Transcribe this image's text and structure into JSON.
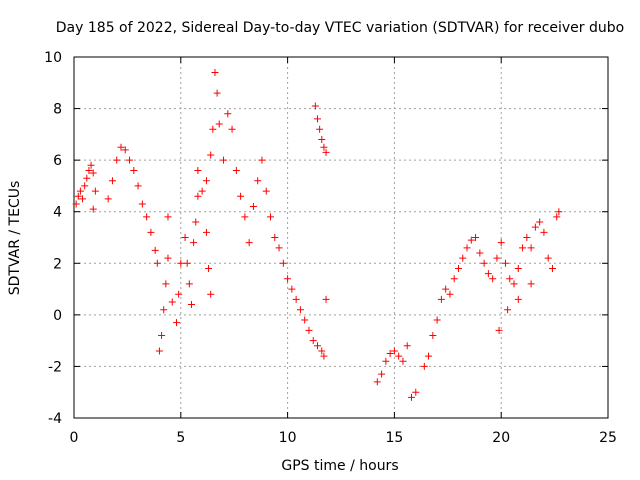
{
  "chart_data": {
    "type": "scatter",
    "title": "Day 185 of 2022, Sidereal Day-to-day VTEC variation (SDTVAR) for receiver dubo",
    "xlabel": "GPS time / hours",
    "ylabel": "SDTVAR / TECUs",
    "xlim": [
      0,
      25
    ],
    "ylim": [
      -4,
      10
    ],
    "xticks": [
      0,
      5,
      10,
      15,
      20,
      25
    ],
    "yticks": [
      -4,
      -2,
      0,
      2,
      4,
      6,
      8,
      10
    ],
    "xtick_labels": [
      "0",
      "5",
      "10",
      "15",
      "20",
      "25"
    ],
    "ytick_labels": [
      "-4",
      "-2",
      "0",
      "2",
      "4",
      "6",
      "8",
      "10"
    ],
    "grid": true,
    "marker": "plus",
    "color": "#ff0000",
    "series": [
      {
        "name": "SDTVAR",
        "points": [
          [
            0.1,
            4.3
          ],
          [
            0.2,
            4.6
          ],
          [
            0.3,
            4.8
          ],
          [
            0.4,
            4.5
          ],
          [
            0.5,
            5.0
          ],
          [
            0.6,
            5.3
          ],
          [
            0.7,
            5.6
          ],
          [
            0.8,
            5.8
          ],
          [
            0.9,
            5.5
          ],
          [
            1.0,
            4.8
          ],
          [
            0.9,
            4.1
          ],
          [
            1.6,
            4.5
          ],
          [
            1.8,
            5.2
          ],
          [
            2.0,
            6.0
          ],
          [
            2.2,
            6.5
          ],
          [
            2.4,
            6.4
          ],
          [
            2.6,
            6.0
          ],
          [
            2.8,
            5.6
          ],
          [
            3.0,
            5.0
          ],
          [
            3.2,
            4.3
          ],
          [
            3.4,
            3.8
          ],
          [
            3.6,
            3.2
          ],
          [
            3.8,
            2.5
          ],
          [
            3.9,
            2.0
          ],
          [
            4.0,
            -1.4
          ],
          [
            4.1,
            -0.8
          ],
          [
            4.2,
            0.2
          ],
          [
            4.3,
            1.2
          ],
          [
            4.4,
            2.2
          ],
          [
            4.4,
            3.8
          ],
          [
            4.6,
            0.5
          ],
          [
            4.8,
            -0.3
          ],
          [
            4.9,
            0.8
          ],
          [
            5.0,
            2.0
          ],
          [
            5.2,
            3.0
          ],
          [
            5.3,
            2.0
          ],
          [
            5.4,
            1.2
          ],
          [
            5.5,
            0.4
          ],
          [
            5.6,
            2.8
          ],
          [
            5.7,
            3.6
          ],
          [
            5.8,
            4.6
          ],
          [
            5.8,
            5.6
          ],
          [
            6.0,
            4.8
          ],
          [
            6.2,
            3.2
          ],
          [
            6.3,
            1.8
          ],
          [
            6.4,
            0.8
          ],
          [
            6.2,
            5.2
          ],
          [
            6.4,
            6.2
          ],
          [
            6.5,
            7.2
          ],
          [
            6.6,
            9.4
          ],
          [
            6.7,
            8.6
          ],
          [
            6.8,
            7.4
          ],
          [
            7.0,
            6.0
          ],
          [
            7.2,
            7.8
          ],
          [
            7.4,
            7.2
          ],
          [
            7.6,
            5.6
          ],
          [
            7.8,
            4.6
          ],
          [
            8.0,
            3.8
          ],
          [
            8.2,
            2.8
          ],
          [
            8.4,
            4.2
          ],
          [
            8.6,
            5.2
          ],
          [
            8.8,
            6.0
          ],
          [
            9.0,
            4.8
          ],
          [
            9.2,
            3.8
          ],
          [
            9.4,
            3.0
          ],
          [
            9.6,
            2.6
          ],
          [
            9.8,
            2.0
          ],
          [
            10.0,
            1.4
          ],
          [
            10.2,
            1.0
          ],
          [
            10.4,
            0.6
          ],
          [
            10.6,
            0.2
          ],
          [
            10.8,
            -0.2
          ],
          [
            11.0,
            -0.6
          ],
          [
            11.2,
            -1.0
          ],
          [
            11.4,
            -1.2
          ],
          [
            11.6,
            -1.4
          ],
          [
            11.7,
            -1.6
          ],
          [
            11.8,
            0.6
          ],
          [
            11.3,
            8.1
          ],
          [
            11.4,
            7.6
          ],
          [
            11.5,
            7.2
          ],
          [
            11.6,
            6.8
          ],
          [
            11.7,
            6.5
          ],
          [
            11.8,
            6.3
          ],
          [
            14.2,
            -2.6
          ],
          [
            14.4,
            -2.3
          ],
          [
            14.6,
            -1.8
          ],
          [
            14.8,
            -1.5
          ],
          [
            15.0,
            -1.4
          ],
          [
            15.2,
            -1.6
          ],
          [
            15.4,
            -1.8
          ],
          [
            15.6,
            -1.2
          ],
          [
            15.8,
            -3.2
          ],
          [
            16.0,
            -3.0
          ],
          [
            16.4,
            -2.0
          ],
          [
            16.6,
            -1.6
          ],
          [
            16.8,
            -0.8
          ],
          [
            17.0,
            -0.2
          ],
          [
            17.2,
            0.6
          ],
          [
            17.4,
            1.0
          ],
          [
            17.6,
            0.8
          ],
          [
            17.8,
            1.4
          ],
          [
            18.0,
            1.8
          ],
          [
            18.2,
            2.2
          ],
          [
            18.4,
            2.6
          ],
          [
            18.6,
            2.9
          ],
          [
            18.8,
            3.0
          ],
          [
            19.0,
            2.4
          ],
          [
            19.2,
            2.0
          ],
          [
            19.4,
            1.6
          ],
          [
            19.6,
            1.4
          ],
          [
            19.8,
            2.2
          ],
          [
            20.0,
            2.8
          ],
          [
            20.2,
            2.0
          ],
          [
            20.4,
            1.4
          ],
          [
            20.6,
            1.2
          ],
          [
            20.8,
            1.8
          ],
          [
            21.0,
            2.6
          ],
          [
            21.2,
            3.0
          ],
          [
            21.4,
            2.6
          ],
          [
            21.6,
            3.4
          ],
          [
            21.8,
            3.6
          ],
          [
            22.0,
            3.2
          ],
          [
            22.2,
            2.2
          ],
          [
            22.4,
            1.8
          ],
          [
            22.6,
            3.8
          ],
          [
            22.7,
            4.0
          ],
          [
            19.9,
            -0.6
          ],
          [
            20.3,
            0.2
          ],
          [
            20.8,
            0.6
          ],
          [
            21.4,
            1.2
          ]
        ]
      }
    ]
  }
}
